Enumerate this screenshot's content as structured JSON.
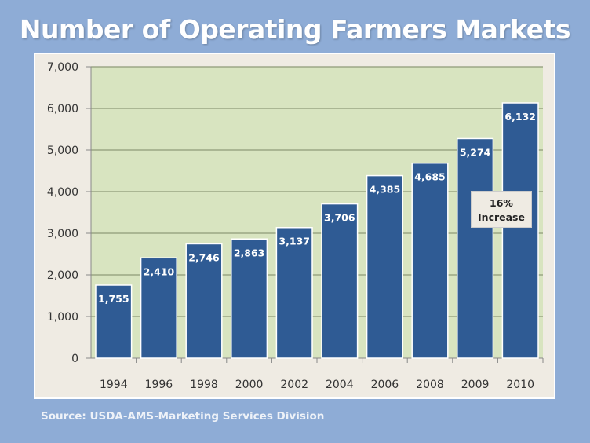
{
  "chart_data": {
    "type": "bar",
    "title": "Number of Operating Farmers Markets",
    "categories": [
      "1994",
      "1996",
      "1998",
      "2000",
      "2002",
      "2004",
      "2006",
      "2008",
      "2009",
      "2010"
    ],
    "values": [
      1755,
      2410,
      2746,
      2863,
      3137,
      3706,
      4385,
      4685,
      5274,
      6132
    ],
    "data_labels": [
      "1,755",
      "2,410",
      "2,746",
      "2,863",
      "3,137",
      "3,706",
      "4,385",
      "4,685",
      "5,274",
      "6,132"
    ],
    "ylim": [
      0,
      7000
    ],
    "yticks": [
      0,
      1000,
      2000,
      3000,
      4000,
      5000,
      6000,
      7000
    ],
    "ytick_labels": [
      "0",
      "1,000",
      "2,000",
      "3,000",
      "4,000",
      "5,000",
      "6,000",
      "7,000"
    ],
    "xlabel": "",
    "ylabel": "",
    "grid": true,
    "annotation": {
      "line1": "16%",
      "line2": "Increase"
    },
    "source": "Source:  USDA-AMS-Marketing Services Division",
    "colors": {
      "bar": "#2f5b94",
      "plot_bg": "#d8e4c0",
      "panel_bg": "#efebe3",
      "page_bg": "#8eacd6",
      "grid": "#8e9a78"
    }
  }
}
